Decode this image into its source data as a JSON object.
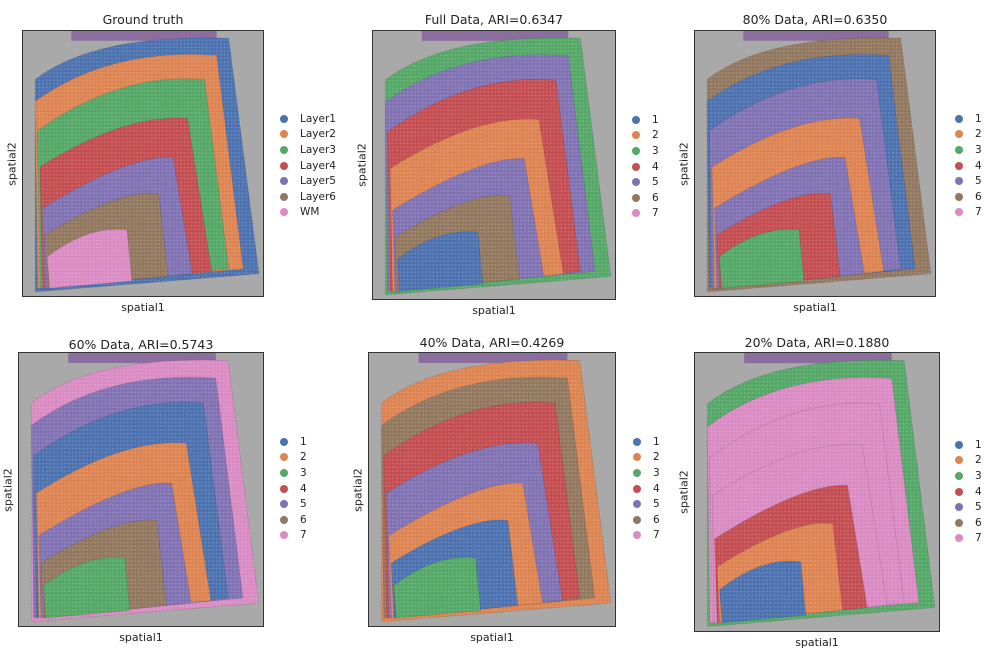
{
  "colors": {
    "c1": "#4c72b0",
    "c2": "#dd8452",
    "c3": "#55a868",
    "c4": "#c44e52",
    "c5": "#8172b3",
    "c6": "#937860",
    "c7": "#da8bc3",
    "tissue_bg": "#a8a9a8"
  },
  "chart_data": [
    {
      "type": "scatter",
      "title": "Ground truth",
      "xlabel": "spatial1",
      "ylabel": "spatial2",
      "legend": [
        "Layer1",
        "Layer2",
        "Layer3",
        "Layer4",
        "Layer5",
        "Layer6",
        "WM"
      ],
      "legend_position": "right",
      "layer_order": [
        "Layer1",
        "Layer2",
        "Layer3",
        "Layer4",
        "Layer5",
        "Layer6",
        "WM"
      ]
    },
    {
      "type": "scatter",
      "title": "Full Data, ARI=0.6347",
      "ari": 0.6347,
      "xlabel": "spatial1",
      "ylabel": "spatial2",
      "legend": [
        "1",
        "2",
        "3",
        "4",
        "5",
        "6",
        "7"
      ],
      "legend_position": "right",
      "layer_order": [
        "3",
        "5",
        "4",
        "2",
        "5",
        "6",
        "1"
      ]
    },
    {
      "type": "scatter",
      "title": "80% Data, ARI=0.6350",
      "ari": 0.635,
      "xlabel": "spatial1",
      "ylabel": "spatial2",
      "legend": [
        "1",
        "2",
        "3",
        "4",
        "5",
        "6",
        "7"
      ],
      "legend_position": "right",
      "layer_order": [
        "6",
        "1",
        "5",
        "2",
        "5",
        "4",
        "3"
      ]
    },
    {
      "type": "scatter",
      "title": "60% Data, ARI=0.5743",
      "ari": 0.5743,
      "xlabel": "spatial1",
      "ylabel": "spatial2",
      "legend": [
        "1",
        "2",
        "3",
        "4",
        "5",
        "6",
        "7"
      ],
      "legend_position": "right",
      "layer_order": [
        "7",
        "5",
        "1",
        "2",
        "5",
        "6",
        "3"
      ]
    },
    {
      "type": "scatter",
      "title": "40% Data, ARI=0.4269",
      "ari": 0.4269,
      "xlabel": "spatial1",
      "ylabel": "spatial2",
      "legend": [
        "1",
        "2",
        "3",
        "4",
        "5",
        "6",
        "7"
      ],
      "legend_position": "right",
      "layer_order": [
        "2",
        "6",
        "4",
        "5",
        "2",
        "1",
        "3"
      ]
    },
    {
      "type": "scatter",
      "title": "20% Data, ARI=0.1880",
      "ari": 0.188,
      "xlabel": "spatial1",
      "ylabel": "spatial2",
      "legend": [
        "1",
        "2",
        "3",
        "4",
        "5",
        "6",
        "7"
      ],
      "legend_position": "right",
      "layer_order": [
        "3",
        "7",
        "7",
        "7",
        "4",
        "2",
        "1"
      ]
    }
  ]
}
